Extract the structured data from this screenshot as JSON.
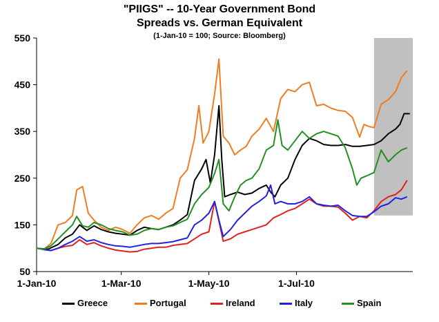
{
  "chart_data": {
    "type": "line",
    "title": "\"PIIGS\" -- 10-Year Government Bond",
    "subtitle": "Spreads vs. German Equivalent",
    "note": "(1-Jan-10 = 100; Source: Bloomberg)",
    "xlabel": "",
    "ylabel": "",
    "ylim": [
      50,
      550
    ],
    "y_ticks": [
      50,
      150,
      250,
      350,
      450,
      550
    ],
    "x_ticks": [
      {
        "label": "1-Jan-10",
        "day": 0
      },
      {
        "label": "1-Mar-10",
        "day": 59
      },
      {
        "label": "1-May-10",
        "day": 120
      },
      {
        "label": "1-Jul-10",
        "day": 181
      }
    ],
    "xlim": [
      0,
      262
    ],
    "highlight_region": {
      "x_start": 235,
      "x_end": 262,
      "y_start": 170,
      "y_end": 550,
      "color": "#c0c0c0"
    },
    "series": [
      {
        "name": "Greece",
        "color": "#000000",
        "points": [
          [
            0,
            100
          ],
          [
            8,
            98
          ],
          [
            15,
            108
          ],
          [
            20,
            122
          ],
          [
            25,
            130
          ],
          [
            30,
            150
          ],
          [
            35,
            138
          ],
          [
            40,
            148
          ],
          [
            45,
            140
          ],
          [
            50,
            135
          ],
          [
            55,
            132
          ],
          [
            60,
            130
          ],
          [
            65,
            128
          ],
          [
            70,
            138
          ],
          [
            75,
            145
          ],
          [
            80,
            142
          ],
          [
            85,
            140
          ],
          [
            90,
            145
          ],
          [
            95,
            150
          ],
          [
            100,
            160
          ],
          [
            105,
            172
          ],
          [
            110,
            245
          ],
          [
            115,
            270
          ],
          [
            118,
            290
          ],
          [
            121,
            240
          ],
          [
            124,
            300
          ],
          [
            127,
            405
          ],
          [
            129,
            290
          ],
          [
            131,
            210
          ],
          [
            135,
            215
          ],
          [
            140,
            220
          ],
          [
            145,
            215
          ],
          [
            150,
            218
          ],
          [
            155,
            228
          ],
          [
            160,
            235
          ],
          [
            163,
            220
          ],
          [
            166,
            210
          ],
          [
            170,
            235
          ],
          [
            175,
            250
          ],
          [
            180,
            290
          ],
          [
            185,
            320
          ],
          [
            190,
            335
          ],
          [
            195,
            330
          ],
          [
            200,
            322
          ],
          [
            205,
            320
          ],
          [
            210,
            320
          ],
          [
            215,
            322
          ],
          [
            220,
            318
          ],
          [
            225,
            318
          ],
          [
            230,
            320
          ],
          [
            235,
            322
          ],
          [
            240,
            330
          ],
          [
            245,
            345
          ],
          [
            250,
            355
          ],
          [
            253,
            365
          ],
          [
            256,
            388
          ],
          [
            260,
            388
          ]
        ]
      },
      {
        "name": "Portugal",
        "color": "#f07c20",
        "points": [
          [
            0,
            100
          ],
          [
            5,
            98
          ],
          [
            10,
            110
          ],
          [
            15,
            150
          ],
          [
            20,
            155
          ],
          [
            25,
            170
          ],
          [
            28,
            225
          ],
          [
            32,
            232
          ],
          [
            36,
            175
          ],
          [
            40,
            160
          ],
          [
            45,
            145
          ],
          [
            50,
            138
          ],
          [
            55,
            145
          ],
          [
            60,
            140
          ],
          [
            65,
            132
          ],
          [
            70,
            150
          ],
          [
            75,
            165
          ],
          [
            80,
            170
          ],
          [
            85,
            162
          ],
          [
            90,
            175
          ],
          [
            95,
            185
          ],
          [
            100,
            250
          ],
          [
            105,
            268
          ],
          [
            110,
            335
          ],
          [
            113,
            405
          ],
          [
            116,
            325
          ],
          [
            120,
            350
          ],
          [
            124,
            430
          ],
          [
            127,
            505
          ],
          [
            130,
            340
          ],
          [
            134,
            325
          ],
          [
            138,
            300
          ],
          [
            142,
            310
          ],
          [
            146,
            318
          ],
          [
            150,
            340
          ],
          [
            155,
            355
          ],
          [
            160,
            378
          ],
          [
            165,
            350
          ],
          [
            170,
            420
          ],
          [
            175,
            440
          ],
          [
            180,
            435
          ],
          [
            185,
            450
          ],
          [
            190,
            455
          ],
          [
            195,
            405
          ],
          [
            200,
            408
          ],
          [
            205,
            400
          ],
          [
            210,
            395
          ],
          [
            215,
            393
          ],
          [
            220,
            380
          ],
          [
            225,
            338
          ],
          [
            228,
            365
          ],
          [
            232,
            360
          ],
          [
            235,
            358
          ],
          [
            240,
            408
          ],
          [
            245,
            418
          ],
          [
            250,
            435
          ],
          [
            254,
            465
          ],
          [
            258,
            480
          ]
        ]
      },
      {
        "name": "Ireland",
        "color": "#e02020",
        "points": [
          [
            0,
            100
          ],
          [
            5,
            98
          ],
          [
            10,
            95
          ],
          [
            15,
            100
          ],
          [
            20,
            104
          ],
          [
            25,
            106
          ],
          [
            30,
            118
          ],
          [
            35,
            108
          ],
          [
            40,
            112
          ],
          [
            45,
            105
          ],
          [
            50,
            100
          ],
          [
            55,
            96
          ],
          [
            60,
            94
          ],
          [
            65,
            92
          ],
          [
            70,
            93
          ],
          [
            75,
            98
          ],
          [
            80,
            100
          ],
          [
            85,
            102
          ],
          [
            90,
            102
          ],
          [
            95,
            106
          ],
          [
            100,
            108
          ],
          [
            105,
            110
          ],
          [
            110,
            120
          ],
          [
            115,
            130
          ],
          [
            120,
            135
          ],
          [
            124,
            200
          ],
          [
            127,
            158
          ],
          [
            130,
            115
          ],
          [
            135,
            120
          ],
          [
            140,
            130
          ],
          [
            145,
            135
          ],
          [
            150,
            140
          ],
          [
            155,
            145
          ],
          [
            160,
            150
          ],
          [
            165,
            165
          ],
          [
            170,
            172
          ],
          [
            175,
            180
          ],
          [
            180,
            185
          ],
          [
            185,
            195
          ],
          [
            190,
            205
          ],
          [
            195,
            195
          ],
          [
            200,
            190
          ],
          [
            205,
            190
          ],
          [
            210,
            188
          ],
          [
            215,
            175
          ],
          [
            220,
            160
          ],
          [
            225,
            168
          ],
          [
            230,
            165
          ],
          [
            235,
            180
          ],
          [
            240,
            200
          ],
          [
            245,
            210
          ],
          [
            250,
            215
          ],
          [
            254,
            225
          ],
          [
            258,
            245
          ]
        ]
      },
      {
        "name": "Italy",
        "color": "#2020e0",
        "points": [
          [
            0,
            100
          ],
          [
            5,
            97
          ],
          [
            10,
            95
          ],
          [
            15,
            100
          ],
          [
            20,
            108
          ],
          [
            25,
            115
          ],
          [
            30,
            125
          ],
          [
            35,
            115
          ],
          [
            40,
            118
          ],
          [
            45,
            112
          ],
          [
            50,
            108
          ],
          [
            55,
            105
          ],
          [
            60,
            104
          ],
          [
            65,
            102
          ],
          [
            70,
            105
          ],
          [
            75,
            108
          ],
          [
            80,
            110
          ],
          [
            85,
            110
          ],
          [
            90,
            112
          ],
          [
            95,
            114
          ],
          [
            100,
            118
          ],
          [
            105,
            122
          ],
          [
            110,
            150
          ],
          [
            115,
            160
          ],
          [
            120,
            175
          ],
          [
            124,
            200
          ],
          [
            127,
            160
          ],
          [
            130,
            125
          ],
          [
            135,
            140
          ],
          [
            140,
            160
          ],
          [
            145,
            175
          ],
          [
            150,
            190
          ],
          [
            155,
            200
          ],
          [
            160,
            212
          ],
          [
            163,
            235
          ],
          [
            166,
            195
          ],
          [
            170,
            200
          ],
          [
            175,
            195
          ],
          [
            180,
            195
          ],
          [
            185,
            200
          ],
          [
            190,
            210
          ],
          [
            195,
            195
          ],
          [
            200,
            192
          ],
          [
            205,
            190
          ],
          [
            210,
            192
          ],
          [
            215,
            180
          ],
          [
            220,
            170
          ],
          [
            225,
            168
          ],
          [
            230,
            168
          ],
          [
            235,
            178
          ],
          [
            240,
            190
          ],
          [
            245,
            195
          ],
          [
            250,
            208
          ],
          [
            254,
            205
          ],
          [
            258,
            210
          ]
        ]
      },
      {
        "name": "Spain",
        "color": "#209020",
        "points": [
          [
            0,
            100
          ],
          [
            5,
            98
          ],
          [
            10,
            105
          ],
          [
            15,
            120
          ],
          [
            20,
            135
          ],
          [
            25,
            150
          ],
          [
            28,
            168
          ],
          [
            32,
            148
          ],
          [
            36,
            145
          ],
          [
            40,
            155
          ],
          [
            45,
            150
          ],
          [
            50,
            142
          ],
          [
            55,
            138
          ],
          [
            60,
            135
          ],
          [
            65,
            128
          ],
          [
            70,
            130
          ],
          [
            75,
            138
          ],
          [
            80,
            142
          ],
          [
            85,
            140
          ],
          [
            90,
            145
          ],
          [
            95,
            148
          ],
          [
            100,
            155
          ],
          [
            105,
            162
          ],
          [
            110,
            195
          ],
          [
            115,
            215
          ],
          [
            120,
            230
          ],
          [
            124,
            260
          ],
          [
            127,
            290
          ],
          [
            130,
            195
          ],
          [
            134,
            180
          ],
          [
            138,
            210
          ],
          [
            142,
            235
          ],
          [
            146,
            245
          ],
          [
            150,
            250
          ],
          [
            155,
            270
          ],
          [
            160,
            310
          ],
          [
            165,
            320
          ],
          [
            168,
            375
          ],
          [
            171,
            320
          ],
          [
            175,
            310
          ],
          [
            180,
            330
          ],
          [
            185,
            350
          ],
          [
            190,
            335
          ],
          [
            195,
            345
          ],
          [
            200,
            350
          ],
          [
            205,
            345
          ],
          [
            210,
            340
          ],
          [
            215,
            315
          ],
          [
            220,
            270
          ],
          [
            223,
            235
          ],
          [
            226,
            250
          ],
          [
            230,
            255
          ],
          [
            235,
            262
          ],
          [
            240,
            310
          ],
          [
            245,
            285
          ],
          [
            250,
            300
          ],
          [
            254,
            310
          ],
          [
            258,
            315
          ]
        ]
      }
    ]
  }
}
